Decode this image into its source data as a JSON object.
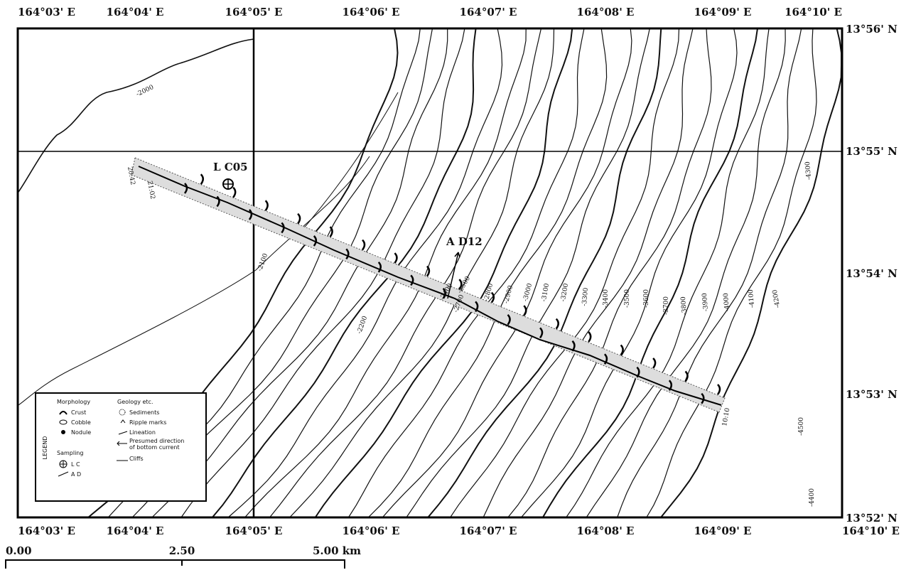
{
  "map": {
    "top_longitudes": [
      "164°03' E",
      "164°04' E",
      "164°05' E",
      "164°06' E",
      "164°07' E",
      "164°08' E",
      "164°09' E",
      "164°10' E"
    ],
    "bottom_longitudes": [
      "164°03' E",
      "164°04' E",
      "164°05' E",
      "164°06' E",
      "164°07' E",
      "164°08' E",
      "164°09' E",
      "164°10' E"
    ],
    "latitudes": [
      "13°56' N",
      "13°55' N",
      "13°54' N",
      "13°53' N",
      "13°52' N"
    ],
    "contour_labels": [
      "-2000",
      "-2100",
      "-2200",
      "-2400",
      "-2500",
      "-2700",
      "-2800",
      "-2900",
      "-3000",
      "-3100",
      "-3200",
      "-3300",
      "-3400",
      "-3500",
      "-3600",
      "-3700",
      "-3800",
      "-3900",
      "-4000",
      "-4100",
      "-4200",
      "-4300",
      "-4400",
      "-4500"
    ],
    "stations": [
      "L C05",
      "A D12"
    ],
    "times": [
      "20:42",
      "21:02",
      "10:10"
    ],
    "scale": [
      "0.00",
      "2.50",
      "5.00 km"
    ]
  },
  "legend": {
    "title": "LEGEND",
    "morphology": {
      "title": "Morphology",
      "items": [
        "Crust",
        "Cobble",
        "Nodule"
      ]
    },
    "sampling": {
      "title": "Sampling",
      "items": [
        "L C",
        "A D"
      ]
    },
    "geology": {
      "title": "Geology etc.",
      "items": [
        "Sediments",
        "Ripple marks",
        "Lineation",
        "Presumed direction",
        "of bottom current",
        "Cliffs"
      ]
    }
  }
}
